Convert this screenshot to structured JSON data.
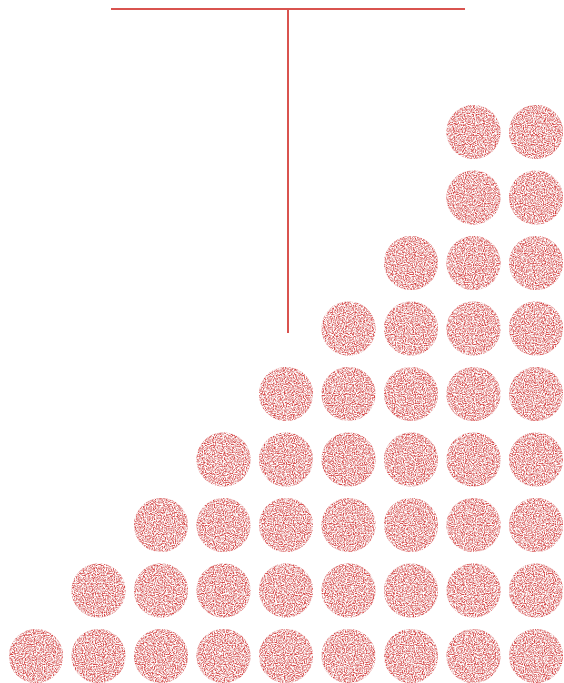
{
  "colors": {
    "background": "#ffffff",
    "accent": "#d64545",
    "line": "#d9534f",
    "speckle": "#ffffff"
  },
  "dot_columns": [
    1,
    2,
    3,
    4,
    5,
    6,
    7,
    9,
    9
  ],
  "icons": {
    "dot": "textured-circle-icon",
    "bracket": "t-bracket-icon"
  }
}
